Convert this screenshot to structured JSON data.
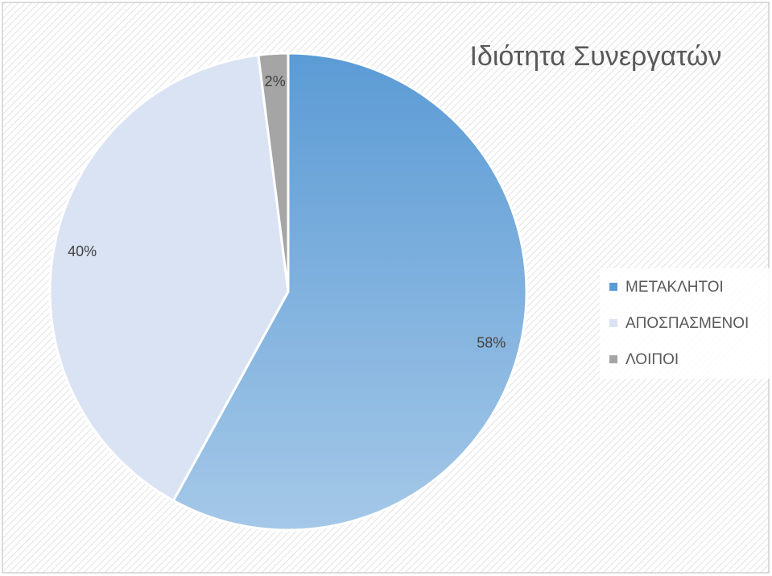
{
  "chart_data": {
    "type": "pie",
    "title": "Ιδιότητα Συνεργατών",
    "categories": [
      "ΜΕΤΑΚΛΗΤΟΙ",
      "ΑΠΟΣΠΑΣΜΕΝΟΙ",
      "ΛΟΙΠΟΙ"
    ],
    "values": [
      58,
      40,
      2
    ],
    "value_labels": [
      "58%",
      "40%",
      "2%"
    ],
    "colors": [
      "#5b9bd5",
      "#dae3f3",
      "#a5a5a5"
    ],
    "legend": "right"
  }
}
